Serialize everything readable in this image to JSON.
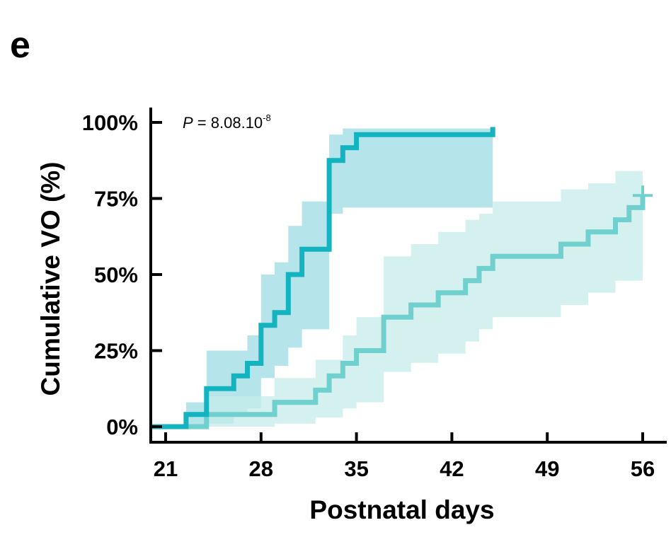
{
  "panel_label": "e",
  "chart_data": {
    "type": "line",
    "subtype": "step (Kaplan-Meier cumulative incidence with confidence bands)",
    "xlabel": "Postnatal days",
    "ylabel": "Cumulative VO (%)",
    "xticks": [
      21,
      28,
      35,
      42,
      49,
      56
    ],
    "xtick_labels": [
      "21",
      "28",
      "35",
      "42",
      "49",
      "56"
    ],
    "yticks": [
      0,
      25,
      50,
      75,
      100
    ],
    "ytick_labels": [
      "0%",
      "25%",
      "50%",
      "75%",
      "100%"
    ],
    "xlim": [
      20,
      57.5
    ],
    "ylim": [
      -3,
      106
    ],
    "grid": false,
    "legend": "none",
    "annotation": {
      "prefix": "P",
      "text": " = 8.08.10",
      "superscript": "-8"
    },
    "series": [
      {
        "color": "#13b3c0",
        "band_color": "#a8dfe6",
        "line_width": 7,
        "band_opacity": 0.85,
        "steps": [
          [
            20,
            0
          ],
          [
            22.5,
            0
          ],
          [
            22.5,
            4
          ],
          [
            24,
            4
          ],
          [
            24,
            12.5
          ],
          [
            26,
            12.5
          ],
          [
            26,
            16.7
          ],
          [
            27,
            16.7
          ],
          [
            27,
            20.8
          ],
          [
            28,
            20.8
          ],
          [
            28,
            33.3
          ],
          [
            29,
            33.3
          ],
          [
            29,
            37.5
          ],
          [
            30,
            37.5
          ],
          [
            30,
            50
          ],
          [
            31,
            50
          ],
          [
            31,
            58.3
          ],
          [
            33,
            58.3
          ],
          [
            33,
            87.5
          ],
          [
            34,
            87.5
          ],
          [
            34,
            91.7
          ],
          [
            35,
            91.7
          ],
          [
            35,
            96
          ],
          [
            45,
            96
          ],
          [
            45,
            98.5
          ]
        ],
        "band_upper": [
          [
            22.5,
            8
          ],
          [
            24,
            8
          ],
          [
            24,
            25
          ],
          [
            27,
            25
          ],
          [
            27,
            30
          ],
          [
            28,
            30
          ],
          [
            28,
            50
          ],
          [
            29,
            50
          ],
          [
            29,
            54
          ],
          [
            30,
            54
          ],
          [
            30,
            66
          ],
          [
            31,
            66
          ],
          [
            31,
            74
          ],
          [
            33,
            74
          ],
          [
            33,
            96
          ],
          [
            34,
            96
          ],
          [
            34,
            98
          ],
          [
            45,
            98
          ]
        ],
        "band_lower": [
          [
            22.5,
            0
          ],
          [
            24,
            0
          ],
          [
            24,
            1
          ],
          [
            26,
            1
          ],
          [
            26,
            4
          ],
          [
            27,
            4
          ],
          [
            27,
            6
          ],
          [
            28,
            6
          ],
          [
            28,
            16
          ],
          [
            29,
            16
          ],
          [
            29,
            20
          ],
          [
            30,
            20
          ],
          [
            30,
            26
          ],
          [
            31,
            26
          ],
          [
            31,
            32
          ],
          [
            33,
            32
          ],
          [
            33,
            70
          ],
          [
            34,
            70
          ],
          [
            34,
            72
          ],
          [
            45,
            72
          ]
        ]
      },
      {
        "color": "#6fd0ce",
        "band_color": "#c5ecea",
        "line_width": 7,
        "band_opacity": 0.75,
        "steps": [
          [
            20,
            0
          ],
          [
            24,
            0
          ],
          [
            24,
            4
          ],
          [
            29,
            4
          ],
          [
            29,
            8
          ],
          [
            32,
            8
          ],
          [
            32,
            12
          ],
          [
            33,
            12
          ],
          [
            33,
            16.7
          ],
          [
            34,
            16.7
          ],
          [
            34,
            20.8
          ],
          [
            35,
            20.8
          ],
          [
            35,
            25
          ],
          [
            37,
            25
          ],
          [
            37,
            36
          ],
          [
            39,
            36
          ],
          [
            39,
            40
          ],
          [
            41,
            40
          ],
          [
            41,
            44
          ],
          [
            43,
            44
          ],
          [
            43,
            48
          ],
          [
            44,
            48
          ],
          [
            44,
            52
          ],
          [
            45,
            52
          ],
          [
            45,
            56
          ],
          [
            50,
            56
          ],
          [
            50,
            60
          ],
          [
            52,
            60
          ],
          [
            52,
            64
          ],
          [
            54,
            64
          ],
          [
            54,
            68
          ],
          [
            55,
            68
          ],
          [
            55,
            72
          ],
          [
            56,
            72
          ],
          [
            56,
            76
          ]
        ],
        "band_upper": [
          [
            24,
            10
          ],
          [
            29,
            10
          ],
          [
            29,
            16
          ],
          [
            32,
            16
          ],
          [
            32,
            22
          ],
          [
            34,
            22
          ],
          [
            34,
            30
          ],
          [
            35,
            30
          ],
          [
            35,
            36
          ],
          [
            37,
            36
          ],
          [
            37,
            56
          ],
          [
            39,
            56
          ],
          [
            39,
            60
          ],
          [
            41,
            60
          ],
          [
            41,
            64
          ],
          [
            43,
            64
          ],
          [
            43,
            68
          ],
          [
            44,
            68
          ],
          [
            44,
            70
          ],
          [
            45,
            70
          ],
          [
            45,
            74
          ],
          [
            50,
            74
          ],
          [
            50,
            78
          ],
          [
            52,
            78
          ],
          [
            52,
            80
          ],
          [
            54,
            80
          ],
          [
            54,
            84
          ],
          [
            56,
            84
          ]
        ],
        "band_lower": [
          [
            24,
            0
          ],
          [
            29,
            0
          ],
          [
            29,
            1
          ],
          [
            32,
            1
          ],
          [
            32,
            3
          ],
          [
            34,
            3
          ],
          [
            34,
            6
          ],
          [
            35,
            6
          ],
          [
            35,
            8
          ],
          [
            37,
            8
          ],
          [
            37,
            18
          ],
          [
            39,
            18
          ],
          [
            39,
            21
          ],
          [
            41,
            21
          ],
          [
            41,
            24
          ],
          [
            43,
            24
          ],
          [
            43,
            28
          ],
          [
            44,
            28
          ],
          [
            44,
            32
          ],
          [
            45,
            32
          ],
          [
            45,
            36
          ],
          [
            50,
            36
          ],
          [
            50,
            40
          ],
          [
            52,
            40
          ],
          [
            52,
            44
          ],
          [
            54,
            44
          ],
          [
            54,
            48
          ],
          [
            56,
            48
          ]
        ]
      }
    ]
  }
}
